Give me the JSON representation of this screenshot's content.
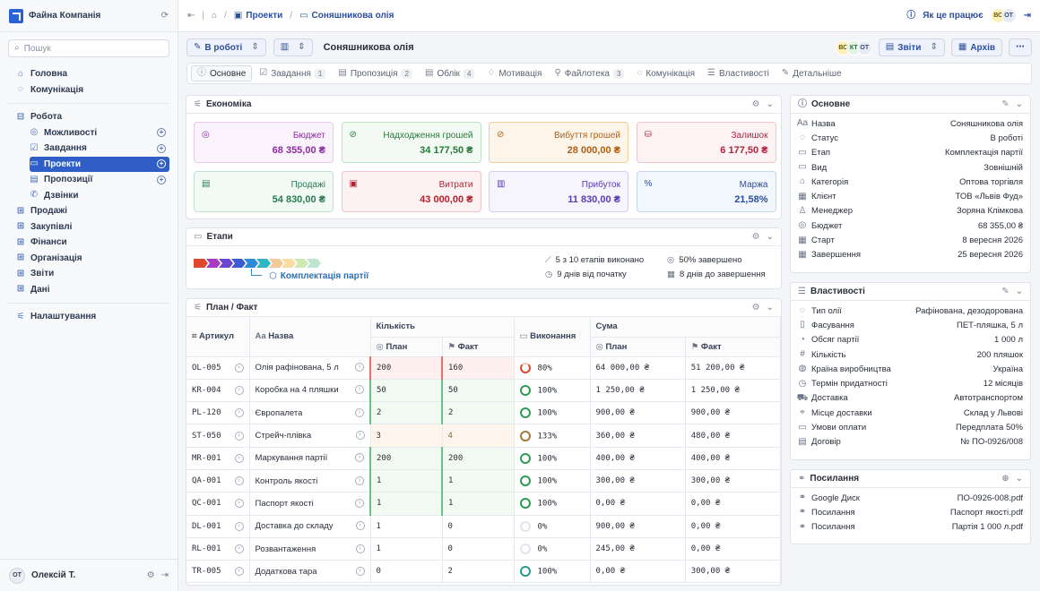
{
  "sidebar": {
    "company": "Файна Компанія",
    "search_placeholder": "Пошук",
    "top": [
      {
        "label": "Головна",
        "icon": "home-icon"
      },
      {
        "label": "Комунікація",
        "icon": "chat-icon"
      }
    ],
    "work": "Робота",
    "work_items": [
      {
        "label": "Можливості",
        "plus": true
      },
      {
        "label": "Завдання",
        "plus": true
      },
      {
        "label": "Проекти",
        "plus": true,
        "active": true
      },
      {
        "label": "Пропозиції",
        "plus": true
      },
      {
        "label": "Дзвінки",
        "plus": false
      }
    ],
    "groups": [
      "Продажі",
      "Закупівлі",
      "Фінанси",
      "Організація",
      "Звіти",
      "Дані"
    ],
    "settings": "Налаштування",
    "user_initials": "ОТ",
    "user_name": "Олексій Т."
  },
  "topbar": {
    "crumb_projects": "Проекти",
    "crumb_current": "Соняшникова олія",
    "help": "Як це працює",
    "avatars": [
      "ВС",
      "ОТ"
    ]
  },
  "toolbar": {
    "status": "В роботі",
    "title": "Соняшникова олія",
    "avatars": [
      "ВС",
      "КТ",
      "ОТ"
    ],
    "reports": "Звіти",
    "archive": "Архів"
  },
  "tabs": [
    {
      "label": "Основне",
      "count": ""
    },
    {
      "label": "Завдання",
      "count": "1"
    },
    {
      "label": "Пропозиція",
      "count": "2"
    },
    {
      "label": "Облік",
      "count": "4"
    },
    {
      "label": "Мотивація",
      "count": ""
    },
    {
      "label": "Файлотека",
      "count": "3"
    },
    {
      "label": "Комунікація",
      "count": ""
    },
    {
      "label": "Властивості",
      "count": ""
    },
    {
      "label": "Детальніше",
      "count": ""
    }
  ],
  "economy": {
    "title": "Економіка",
    "kpis": [
      {
        "label": "Бюджет",
        "value": "68 355,00 ₴",
        "bg": "#fbf3fc",
        "border": "#e7c8ee",
        "fg": "#8a2e9c"
      },
      {
        "label": "Надходження грошей",
        "value": "34 177,50 ₴",
        "bg": "#f2faf3",
        "border": "#bfe2c6",
        "fg": "#2a7a3c"
      },
      {
        "label": "Вибуття грошей",
        "value": "28 000,00 ₴",
        "bg": "#fdf5ea",
        "border": "#f0cf9d",
        "fg": "#b05e10"
      },
      {
        "label": "Залишок",
        "value": "6 177,50 ₴",
        "bg": "#fdf2f4",
        "border": "#f0c4cc",
        "fg": "#b02440"
      },
      {
        "label": "Продажі",
        "value": "54 830,00 ₴",
        "bg": "#f2faf6",
        "border": "#bfe2cf",
        "fg": "#2a7a52"
      },
      {
        "label": "Витрати",
        "value": "43 000,00 ₴",
        "bg": "#fdf2f3",
        "border": "#f0c4c8",
        "fg": "#b02430"
      },
      {
        "label": "Прибуток",
        "value": "11 830,00 ₴",
        "bg": "#f6f4fd",
        "border": "#d2cbf0",
        "fg": "#5a3cb0"
      },
      {
        "label": "Маржа",
        "value": "21,58%",
        "bg": "#f2f6fd",
        "border": "#c6d4f0",
        "fg": "#2a4fa0"
      }
    ]
  },
  "stages": {
    "title": "Етапи",
    "current": "Комплектація партії",
    "done": "5 з 10 етапів виконано",
    "percent": "50% завершено",
    "since": "9 днів від початку",
    "until": "8 днів до завершення",
    "colors": [
      "#e0482e",
      "#a83bc4",
      "#6a45d0",
      "#3d5bd0",
      "#2c8ad6",
      "#2fb5c4",
      "#f3c89a",
      "#f8dca0",
      "#cfe8b4",
      "#bde6d0"
    ]
  },
  "plan": {
    "title": "План / Факт",
    "h_art": "Артикул",
    "h_name": "Назва",
    "h_qty": "Кількість",
    "h_plan": "План",
    "h_fact": "Факт",
    "h_done": "Виконання",
    "h_sum": "Сума",
    "rows": [
      {
        "art": "OL-005",
        "name": "Олія рафінована, 5 л",
        "qp": "200",
        "qf": "160",
        "pct": "80%",
        "sp": "64 000,00 ₴",
        "sf": "51 200,00 ₴",
        "state": "warn"
      },
      {
        "art": "KR-004",
        "name": "Коробка на 4 пляшки",
        "qp": "50",
        "qf": "50",
        "pct": "100%",
        "sp": "1 250,00 ₴",
        "sf": "1 250,00 ₴",
        "state": "ok"
      },
      {
        "art": "PL-120",
        "name": "Європалета",
        "qp": "2",
        "qf": "2",
        "pct": "100%",
        "sp": "900,00 ₴",
        "sf": "900,00 ₴",
        "state": "ok"
      },
      {
        "art": "ST-050",
        "name": "Стрейч-плівка",
        "qp": "3",
        "qf": "4",
        "pct": "133%",
        "sp": "360,00 ₴",
        "sf": "480,00 ₴",
        "state": "over"
      },
      {
        "art": "MR-001",
        "name": "Маркування партії",
        "qp": "200",
        "qf": "200",
        "pct": "100%",
        "sp": "400,00 ₴",
        "sf": "400,00 ₴",
        "state": "ok"
      },
      {
        "art": "QA-001",
        "name": "Контроль якості",
        "qp": "1",
        "qf": "1",
        "pct": "100%",
        "sp": "300,00 ₴",
        "sf": "300,00 ₴",
        "state": "ok"
      },
      {
        "art": "QC-001",
        "name": "Паспорт якості",
        "qp": "1",
        "qf": "1",
        "pct": "100%",
        "sp": "0,00 ₴",
        "sf": "0,00 ₴",
        "state": "ok"
      },
      {
        "art": "DL-001",
        "name": "Доставка до складу",
        "qp": "1",
        "qf": "0",
        "pct": "0%",
        "sp": "900,00 ₴",
        "sf": "0,00 ₴",
        "state": "none"
      },
      {
        "art": "RL-001",
        "name": "Розвантаження",
        "qp": "1",
        "qf": "0",
        "pct": "0%",
        "sp": "245,00 ₴",
        "sf": "0,00 ₴",
        "state": "none"
      },
      {
        "art": "TR-005",
        "name": "Додаткова тара",
        "qp": "0",
        "qf": "2",
        "pct": "100%",
        "sp": "0,00 ₴",
        "sf": "300,00 ₴",
        "state": "plain"
      }
    ]
  },
  "basic": {
    "title": "Основне",
    "rows": [
      {
        "k": "Назва",
        "v": "Соняшникова олія"
      },
      {
        "k": "Статус",
        "v": "В роботі"
      },
      {
        "k": "Етап",
        "v": "Комплектація партії"
      },
      {
        "k": "Вид",
        "v": "Зовнішній"
      },
      {
        "k": "Категорія",
        "v": "Оптова торгівля"
      },
      {
        "k": "Клієнт",
        "v": "ТОВ «Львів Фуд»"
      },
      {
        "k": "Менеджер",
        "v": "Зоряна Клімкова"
      },
      {
        "k": "Бюджет",
        "v": "68 355,00 ₴"
      },
      {
        "k": "Старт",
        "v": "8 вересня 2026"
      },
      {
        "k": "Завершення",
        "v": "25 вересня 2026"
      }
    ]
  },
  "props": {
    "title": "Властивості",
    "rows": [
      {
        "k": "Тип олії",
        "v": "Рафінована, дезодорована"
      },
      {
        "k": "Фасування",
        "v": "ПЕТ-пляшка, 5 л"
      },
      {
        "k": "Обсяг партії",
        "v": "1 000 л"
      },
      {
        "k": "Кількість",
        "v": "200 пляшок"
      },
      {
        "k": "Країна виробництва",
        "v": "Україна"
      },
      {
        "k": "Термін придатності",
        "v": "12 місяців"
      },
      {
        "k": "Доставка",
        "v": "Автотранспортом"
      },
      {
        "k": "Місце доставки",
        "v": "Склад у Львові"
      },
      {
        "k": "Умови оплати",
        "v": "Передплата 50%"
      },
      {
        "k": "Договір",
        "v": "№ ПО-0926/008"
      }
    ]
  },
  "links": {
    "title": "Посилання",
    "rows": [
      {
        "k": "Google Диск",
        "v": "ПО-0926-008.pdf"
      },
      {
        "k": "Посилання",
        "v": "Паспорт якості.pdf"
      },
      {
        "k": "Посилання",
        "v": "Партія 1 000 л.pdf"
      }
    ]
  }
}
